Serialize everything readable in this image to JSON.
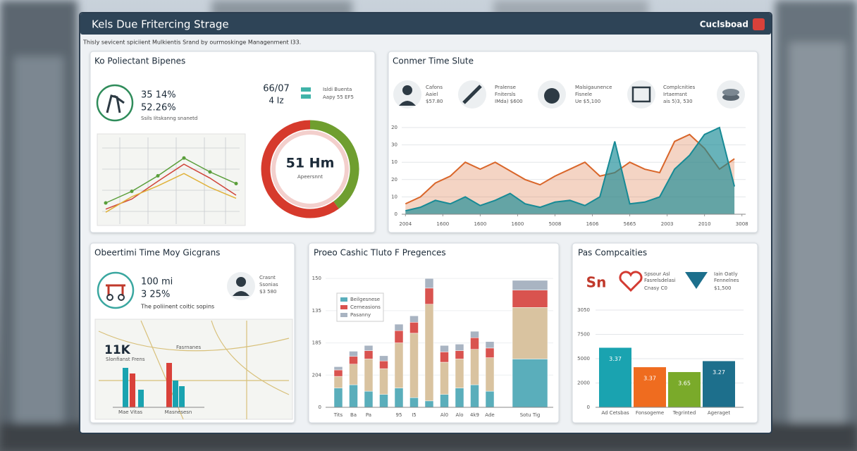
{
  "header": {
    "title": "Kels Due Fritercing Strage",
    "brand": "Cuclsboad",
    "subtitle": "Thisly sevicent spiciient Mulkientis Srand by ourmoskinge Managenment I33."
  },
  "panels": {
    "p1": {
      "title": "Ko Poliectant Bipenes",
      "stat1": "35 14%",
      "stat2": "52.26%",
      "note": "Ssils Iitskanng snanetd",
      "donut_top": "66/07",
      "donut_sub": "4 Iz",
      "legend": [
        "Isldi Buenta",
        "Aapy 55 EF5"
      ],
      "donut": {
        "type": "pie",
        "values": [
          40,
          60
        ],
        "colors": [
          "#6f9e2f",
          "#d63a2c"
        ],
        "center": "51 Hm",
        "center_sub": "Apeersnnt"
      },
      "map_chart": {
        "type": "line",
        "x": [
          0,
          1,
          2,
          3,
          4,
          5
        ],
        "xlim": [
          0,
          5
        ],
        "ylim": [
          0,
          100
        ],
        "series": [
          {
            "color": "#5a9e3a",
            "values": [
              20,
              35,
              55,
              78,
              60,
              45
            ]
          },
          {
            "color": "#d0443a",
            "values": [
              12,
              25,
              48,
              70,
              52,
              30
            ]
          },
          {
            "color": "#e0b23a",
            "values": [
              8,
              28,
              42,
              58,
              40,
              26
            ]
          }
        ]
      }
    },
    "p2": {
      "title": "Conmer Time Slute",
      "items": [
        [
          "Cafons",
          "Aaiel",
          "$57.80"
        ],
        [
          "Pralense",
          "Fnitersls",
          "IMda) $600"
        ],
        [
          "Malsigaunence",
          "Fisnele",
          "Ue $5,100"
        ],
        [
          "Complcnities",
          "Irtaemsnt",
          "ais 5)3, 530"
        ]
      ],
      "chart": {
        "type": "area",
        "x": [
          0,
          0.4,
          0.8,
          1.2,
          1.6,
          2,
          2.4,
          2.8,
          3.2,
          3.6,
          4,
          4.4,
          4.8,
          5.2,
          5.6,
          6,
          6.4,
          6.8,
          7.2,
          7.6,
          8,
          8.4,
          8.8
        ],
        "xlim": [
          -0.1,
          9.1
        ],
        "xticks": [
          {
            "value": 0,
            "label": "2004"
          },
          {
            "value": 1,
            "label": "1600"
          },
          {
            "value": 2,
            "label": "1600"
          },
          {
            "value": 3,
            "label": "1600"
          },
          {
            "value": 4,
            "label": "5008"
          },
          {
            "value": 5,
            "label": "1606"
          },
          {
            "value": 6,
            "label": "5665"
          },
          {
            "value": 7,
            "label": "2003"
          },
          {
            "value": 8,
            "label": "2010"
          },
          {
            "value": 9,
            "label": "3008"
          }
        ],
        "ylim": [
          0,
          50
        ],
        "yticks": [
          0,
          10,
          20,
          {
            "value": 30,
            "label": "10"
          },
          {
            "value": 40,
            "label": "30"
          },
          {
            "value": 50,
            "label": "20"
          }
        ],
        "grid": true,
        "series": [
          {
            "color": "#d9662a",
            "values": [
              6,
              10,
              18,
              22,
              30,
              26,
              30,
              25,
              20,
              17,
              22,
              26,
              30,
              22,
              24,
              30,
              26,
              24,
              42,
              46,
              38,
              26,
              32
            ]
          },
          {
            "color": "#178a95",
            "values": [
              2,
              4,
              8,
              6,
              10,
              5,
              8,
              12,
              6,
              4,
              7,
              8,
              5,
              10,
              42,
              6,
              7,
              10,
              26,
              34,
              46,
              50,
              16
            ]
          }
        ]
      }
    },
    "p3": {
      "title": "Obeertimi Time Moy Gicgrans",
      "stat1": "100 mi",
      "stat2": "3 25%",
      "note": "The poliinent coitic sopins",
      "person": [
        "Crasnt",
        "Ssonias",
        "$3 580"
      ],
      "big": "11K",
      "caption": "Slonfianst Frens",
      "map_legend": "Fasrnanes",
      "chart": {
        "type": "bar",
        "values": [
          56,
          48,
          25,
          63,
          38,
          30
        ],
        "colors": [
          "#1aa3b0",
          "#d9413a",
          "#1aa3b0",
          "#d9413a",
          "#1aa3b0",
          "#1aa3b0"
        ],
        "ylim": [
          0,
          80
        ],
        "groups": [
          "Mae Vitas",
          "Masnesesn"
        ]
      }
    },
    "p4": {
      "title": "Proeo Cashic Tluto F Pregences",
      "chart": {
        "type": "stacked_bar",
        "categories": [
          "Tits",
          "Ba",
          "Pa",
          null,
          "95",
          "I5",
          null,
          "Al0",
          "Alo",
          "4k9",
          "Ade",
          "Sotu Tig"
        ],
        "ylim": [
          0,
          210
        ],
        "yticks": [
          0,
          {
            "value": 50,
            "label": "204"
          },
          {
            "value": 100,
            "label": "185"
          },
          {
            "value": 150,
            "label": "135"
          },
          {
            "value": 200,
            "label": "150"
          }
        ],
        "series": [
          {
            "name": "Beilgesnese",
            "color": "#5aaebb",
            "values": [
              30,
              35,
              25,
              20,
              30,
              15,
              10,
              20,
              30,
              35,
              25,
              75
            ]
          },
          {
            "color": "#d9c3a0",
            "values": [
              18,
              32,
              50,
              40,
              70,
              100,
              150,
              50,
              45,
              55,
              52,
              80
            ]
          },
          {
            "name": "Cerneasions",
            "color": "#d9534f",
            "values": [
              10,
              12,
              13,
              12,
              19,
              17,
              25,
              16,
              13,
              18,
              15,
              27
            ]
          },
          {
            "name": "Pasanny",
            "color": "#a9b4c2",
            "values": [
              5,
              8,
              8,
              8,
              10,
              10,
              15,
              10,
              10,
              10,
              10,
              15
            ]
          }
        ]
      }
    },
    "p5": {
      "title": "Pas Compcaities",
      "logo": "Sn",
      "companies": [
        [
          "Spsour Asl",
          "Fasrelsdelasi",
          "Cnasy C0"
        ],
        [
          "Iain Oatly",
          "Fennelnes",
          "$1,500"
        ]
      ],
      "chart": {
        "type": "bar",
        "categories": [
          "Ad Cetsbas",
          "Fonsogeme",
          "Tegrinted",
          "Ageraget"
        ],
        "values": [
          4900,
          3300,
          2900,
          3800
        ],
        "bar_texts": [
          "3.37",
          "3.37",
          "3.65",
          "3.27"
        ],
        "colors": [
          "#1aa3b0",
          "#ef6c1f",
          "#7aaa2a",
          "#1d6f8c"
        ],
        "ylim": [
          0,
          8000
        ],
        "yticks": [
          0,
          2000,
          {
            "value": 4000,
            "label": "5000"
          },
          {
            "value": 6000,
            "label": "7500"
          },
          {
            "value": 8000,
            "label": "3050"
          }
        ],
        "grid": true
      }
    }
  }
}
